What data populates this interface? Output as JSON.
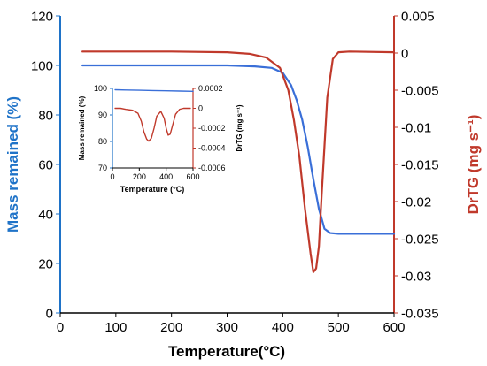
{
  "chart_data": [
    {
      "type": "line",
      "xlabel": "Temperature(°C)",
      "ylabel_left": "Mass remained (%)",
      "ylabel_right": "DrTG (mg s⁻¹)",
      "xlim": [
        0,
        600
      ],
      "ylim_left": [
        0,
        120
      ],
      "ylim_right": [
        -0.035,
        0.005
      ],
      "x_ticks": [
        "0",
        "100",
        "200",
        "300",
        "400",
        "500",
        "600"
      ],
      "y_left_ticks": [
        "0",
        "20",
        "40",
        "60",
        "80",
        "100",
        "120"
      ],
      "y_right_ticks": [
        "0.005",
        "0",
        "-0.005",
        "-0.01",
        "-0.015",
        "-0.02",
        "-0.025",
        "-0.03",
        "-0.035"
      ],
      "grid": false,
      "colors": {
        "mass": "#3a6fd8",
        "drtg": "#c0392b",
        "left_axis": "#1f73c8",
        "right_axis": "#c0392b"
      },
      "series": [
        {
          "axis": "left",
          "x": [
            40,
            100,
            200,
            300,
            350,
            380,
            400,
            415,
            425,
            435,
            445,
            455,
            465,
            475,
            485,
            500,
            600
          ],
          "y": [
            100,
            100,
            100,
            100,
            99.6,
            99,
            97,
            92,
            86,
            78,
            67,
            54,
            42,
            34,
            32.3,
            32,
            32
          ]
        },
        {
          "axis": "right",
          "x": [
            40,
            100,
            200,
            300,
            340,
            370,
            395,
            410,
            420,
            430,
            440,
            450,
            455,
            460,
            465,
            470,
            480,
            490,
            500,
            520,
            600
          ],
          "y": [
            0.0002,
            0.0002,
            0.0002,
            0.0001,
            -0.0001,
            -0.0006,
            -0.002,
            -0.005,
            -0.009,
            -0.014,
            -0.021,
            -0.027,
            -0.0295,
            -0.029,
            -0.026,
            -0.019,
            -0.006,
            -0.0008,
            0.0001,
            0.0002,
            0.0001
          ]
        }
      ]
    },
    {
      "type": "line",
      "xlabel": "Temperature (°C)",
      "ylabel_left": "Mass remained (%)",
      "ylabel_right": "DrTG (mg s⁻¹)",
      "xlim": [
        0,
        600
      ],
      "ylim_left": [
        70,
        100
      ],
      "ylim_right": [
        -0.0006,
        0.0002
      ],
      "x_ticks": [
        "0",
        "200",
        "400",
        "600"
      ],
      "y_left_ticks": [
        "70",
        "80",
        "90",
        "100"
      ],
      "y_right_ticks": [
        "0.0002",
        "0",
        "-0.0002",
        "-0.0004",
        "-0.0006"
      ],
      "grid": false,
      "series": [
        {
          "axis": "left",
          "x": [
            20,
            100,
            200,
            300,
            400,
            500,
            600
          ],
          "y": [
            99.5,
            99.4,
            99.3,
            99.2,
            99.1,
            99.0,
            98.9
          ]
        },
        {
          "axis": "right",
          "x": [
            20,
            60,
            100,
            150,
            190,
            215,
            235,
            255,
            270,
            290,
            310,
            330,
            360,
            385,
            400,
            415,
            430,
            450,
            470,
            500,
            530,
            560,
            580
          ],
          "y": [
            0.0,
            0.0,
            -1e-05,
            -2e-05,
            -5e-05,
            -0.00013,
            -0.00024,
            -0.00031,
            -0.00033,
            -0.0003,
            -0.0002,
            -8e-05,
            -3e-05,
            -0.0001,
            -0.0002,
            -0.00027,
            -0.00026,
            -0.00016,
            -6e-05,
            -1e-05,
            0.0,
            0.0,
            0.0
          ]
        }
      ]
    }
  ]
}
